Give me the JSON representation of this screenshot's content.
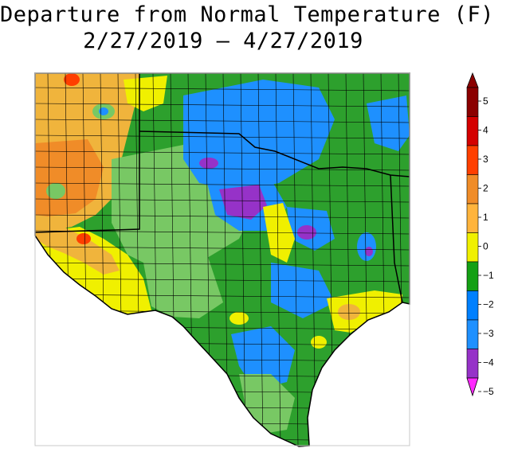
{
  "title": {
    "line1": "Departure from Normal Temperature (F)",
    "line2": "2/27/2019 – 4/27/2019"
  },
  "legend": {
    "ticks": [
      "5",
      "4",
      "3",
      "2",
      "1",
      "0",
      "−1",
      "−2",
      "−3",
      "−4",
      "−5"
    ],
    "colors": {
      "c5": "#8b0000",
      "c4": "#d40000",
      "c3": "#ff3f00",
      "c2": "#f08c28",
      "c1": "#ffb43c",
      "c0": "#f0f000",
      "cm0": "#78c864",
      "cm1": "#14a014",
      "cm2": "#0080ff",
      "cm3": "#1e90ff",
      "cm4": "#9632c8",
      "cm5": "#ff28ff"
    }
  },
  "map": {
    "colors": {
      "green": "#2da02d",
      "light_green": "#78c864",
      "yellow": "#f0f000",
      "orange": "#f0b43c",
      "dark_orange": "#f08c28",
      "blue": "#1e90ff",
      "purple": "#9632c8",
      "red": "#ff3f00",
      "border": "#000000"
    }
  }
}
